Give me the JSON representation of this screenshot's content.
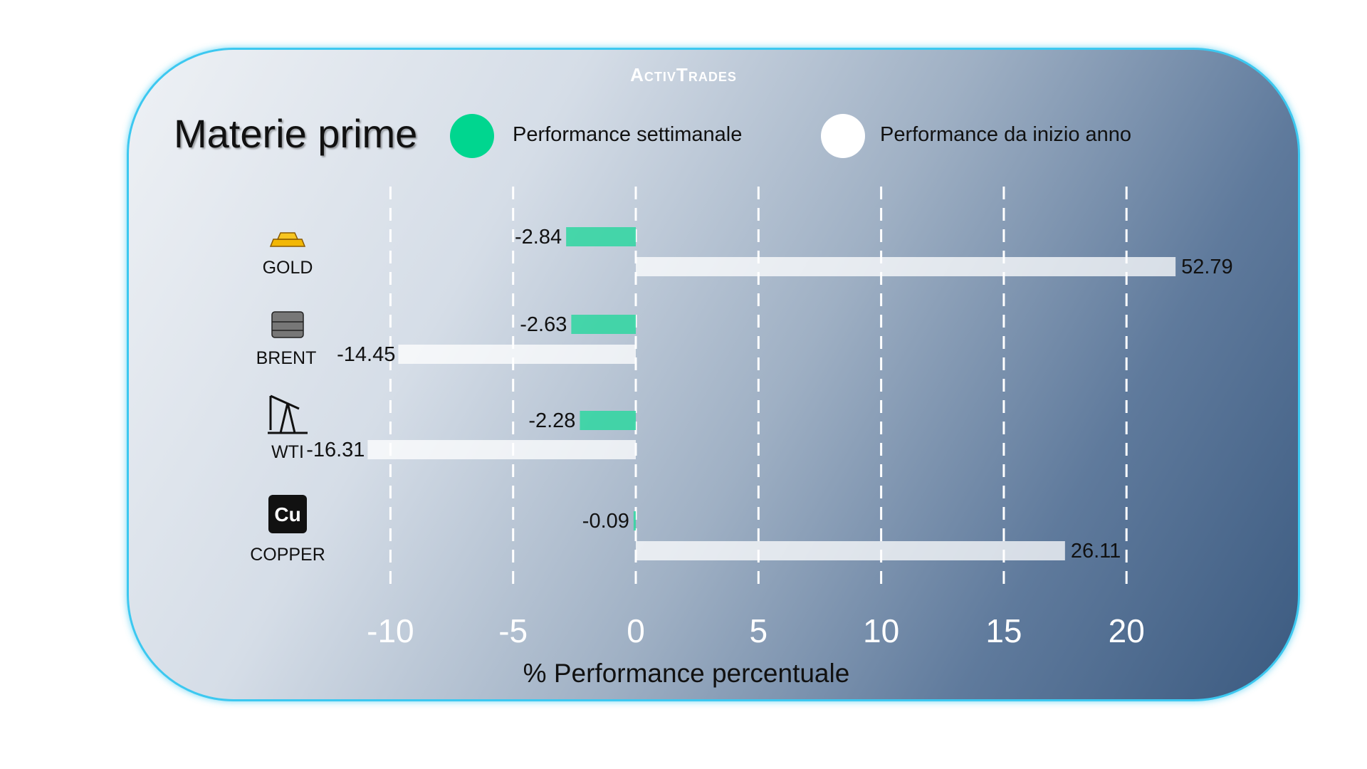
{
  "logo": "ActivTrades",
  "chart_data": {
    "type": "bar",
    "title": "Materie prime",
    "xlabel": "% Performance percentuale",
    "xlim": [
      -10,
      20
    ],
    "xticks": [
      -10,
      -5,
      0,
      5,
      10,
      15,
      20
    ],
    "grid": "vertical dashed",
    "legend_placement": "top",
    "categories": [
      "GOLD",
      "BRENT",
      "WTI",
      "COPPER"
    ],
    "series": [
      {
        "name": "Performance settimanale",
        "color": "#2ed6a0",
        "values": [
          -2.84,
          -2.63,
          -2.28,
          -0.09
        ]
      },
      {
        "name": "Performance da inizio anno",
        "color": "#ffffff",
        "values": [
          52.79,
          -14.45,
          -16.31,
          26.11
        ]
      }
    ]
  }
}
